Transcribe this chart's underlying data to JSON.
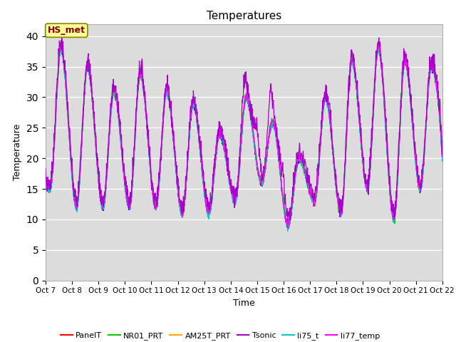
{
  "title": "Temperatures",
  "xlabel": "Time",
  "ylabel": "Temperature",
  "ylim": [
    0,
    42
  ],
  "yticks": [
    0,
    5,
    10,
    15,
    20,
    25,
    30,
    35,
    40
  ],
  "bg_color": "#dcdcdc",
  "series_colors": {
    "PanelT": "#ff0000",
    "AirT": "#0000bb",
    "NR01_PRT": "#00cc00",
    "AM25T_PRT": "#ffaa00",
    "Tsonic": "#aa00cc",
    "li75_t": "#00cccc",
    "li77_temp": "#ff00ff"
  },
  "xtick_labels": [
    "Oct 7",
    "Oct 8",
    "Oct 9",
    "Oct 10",
    "Oct 11",
    "Oct 12",
    "Oct 13",
    "Oct 14",
    "Oct 15",
    "Oct 16",
    "Oct 17",
    "Oct 18",
    "Oct 19",
    "Oct 20",
    "Oct 21",
    "Oct 22"
  ],
  "annotation_text": "HS_met",
  "annotation_color": "#880000",
  "annotation_bg": "#ffff99",
  "annotation_border": "#888800"
}
